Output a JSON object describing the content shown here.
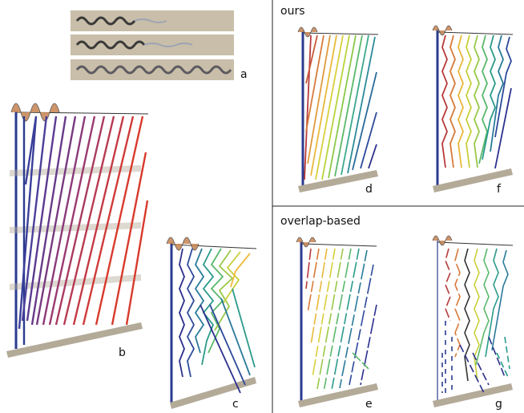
{
  "sections": {
    "ours": "ours",
    "overlap": "overlap-based"
  },
  "panels": {
    "a": "a",
    "b": "b",
    "c": "c",
    "d": "d",
    "e": "e",
    "f": "f",
    "g": "g"
  },
  "colors": {
    "slab": "#b3aa98",
    "strip": "#c9bea9",
    "red": "#d83a2c",
    "blue": "#2a3b8f",
    "divider": "#222222"
  }
}
